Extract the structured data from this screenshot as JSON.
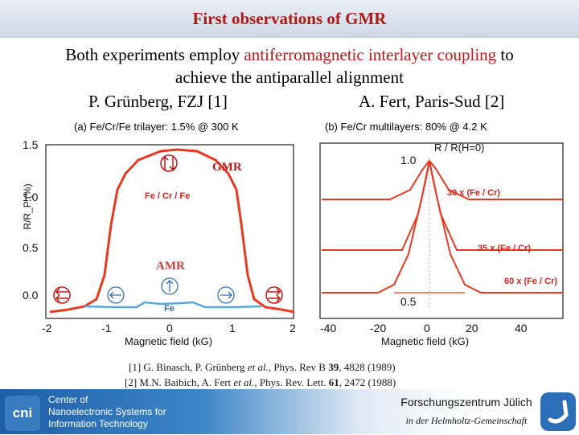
{
  "title": "First observations of GMR",
  "intro": {
    "line1_pre": "Both experiments employ ",
    "line1_highlight": "antiferromagnetic interlayer coupling",
    "line1_post": " to",
    "line2": "achieve the antiparallel alignment"
  },
  "authors": {
    "left": "P. Grünberg, FZJ [1]",
    "right": "A. Fert, Paris-Sud [2]"
  },
  "panel_a": {
    "title": "(a) Fe/Cr/Fe trilayer: 1.5% @ 300 K",
    "ylabel": "R/R_P (%)",
    "yticks": [
      "1.5",
      "1.0",
      "0.5",
      "0.0"
    ],
    "xticks": [
      "-2",
      "-1",
      "0",
      "1",
      "2"
    ],
    "xlabel": "Magnetic field (kG)",
    "labels": {
      "gmr": "GMR",
      "amr": "AMR",
      "layer": "Fe / Cr / Fe",
      "fe": "Fe"
    },
    "colors": {
      "gmr": "#e83a20",
      "amr": "#5aa8d8"
    }
  },
  "panel_b": {
    "title": "(b) Fe/Cr multilayers: 80% @ 4.2 K",
    "ylabel": "R / R(H=0)",
    "yticks": [
      "1.0",
      "0.5"
    ],
    "xticks": [
      "-40",
      "-20",
      "0",
      "20",
      "40"
    ],
    "xlabel": "Magnetic field (kG)",
    "curve_labels": [
      "30 x (Fe / Cr)",
      "35 x (Fe / Cr)",
      "60 x (Fe / Cr)"
    ]
  },
  "references": {
    "ref1_a": "[1] G. Binasch, P. Grünberg ",
    "ref1_b": "et al.",
    "ref1_c": ", Phys. Rev B ",
    "ref1_d": "39",
    "ref1_e": ", 4828 (1989)",
    "ref2_a": "[2] M.N. Baibich, A. Fert ",
    "ref2_b": "et al.",
    "ref2_c": ", Phys. Rev. Lett. ",
    "ref2_d": "61",
    "ref2_e": ", 2472 (1988)"
  },
  "footer": {
    "logo": "cni",
    "center_lines": [
      "Center of",
      "Nanoelectronic Systems for",
      "Information Technology"
    ],
    "fzj_name": "Forschungszentrum Jülich",
    "helmholtz": "in der Helmholtz-Gemeinschaft"
  }
}
